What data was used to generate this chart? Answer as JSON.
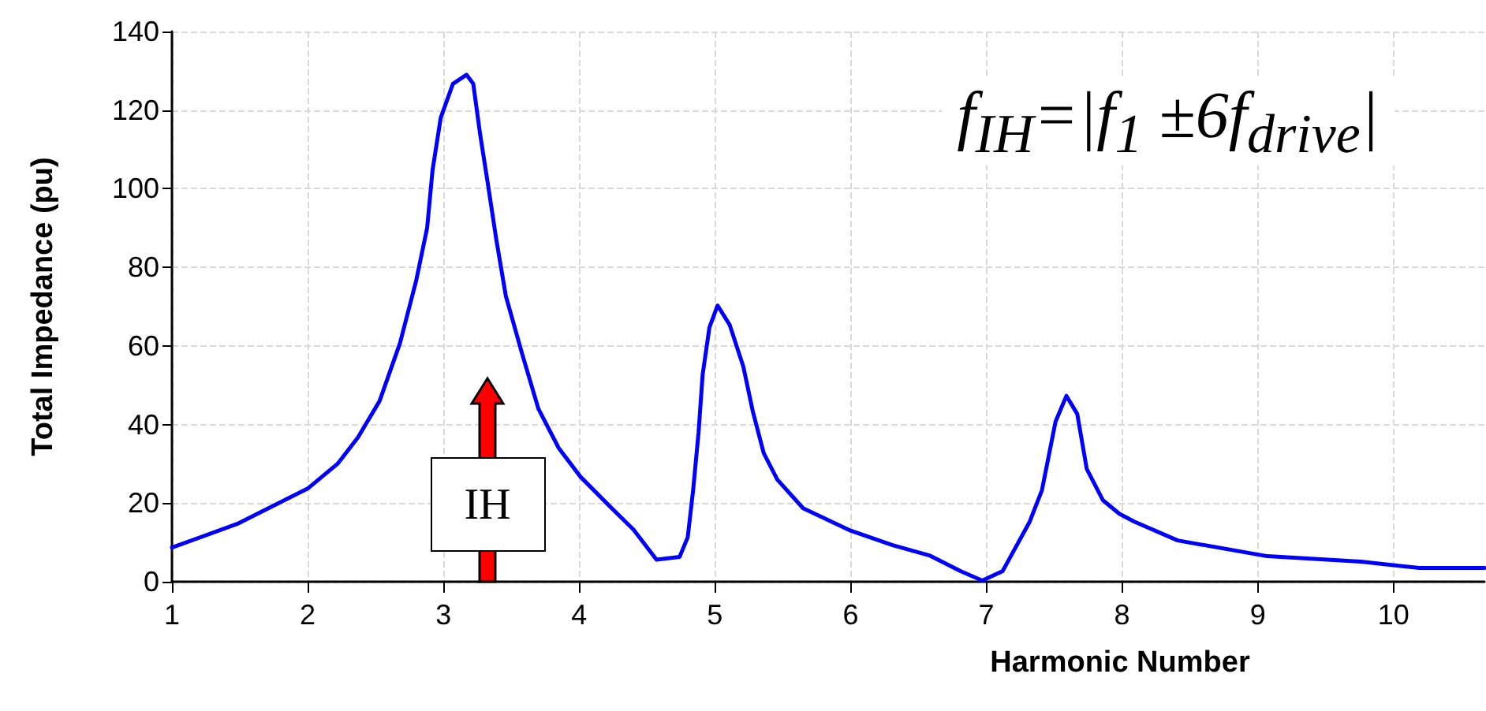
{
  "chart_data": {
    "type": "line",
    "xlabel": "Harmonic Number",
    "ylabel": "Total Impedance (pu)",
    "xlim": [
      1,
      10.67
    ],
    "xticks": [
      1,
      2,
      3,
      4,
      5,
      6,
      7,
      8,
      9,
      10
    ],
    "ylim": [
      0,
      140
    ],
    "yticks": [
      0,
      20,
      40,
      60,
      80,
      100,
      120,
      140
    ],
    "grid": true,
    "marker": "none",
    "line_style": "solid",
    "annotations": [
      "f$_{IH}$=|f$_{1}$ ±6f$_{drive}$|",
      "IH"
    ],
    "series": [
      {
        "color": "#0000ff",
        "x": [
          1.0,
          1.48,
          2.0,
          2.22,
          2.37,
          2.53,
          2.68,
          2.8,
          2.88,
          2.92,
          2.98,
          3.07,
          3.17,
          3.22,
          3.27,
          3.33,
          3.39,
          3.46,
          3.58,
          3.7,
          3.85,
          4.01,
          4.24,
          4.4,
          4.57,
          4.74,
          4.8,
          4.84,
          4.88,
          4.91,
          4.96,
          5.02,
          5.11,
          5.21,
          5.28,
          5.36,
          5.46,
          5.65,
          6.0,
          6.31,
          6.58,
          6.81,
          6.97,
          7.12,
          7.32,
          7.41,
          7.51,
          7.59,
          7.67,
          7.74,
          7.86,
          7.98,
          8.09,
          8.41,
          9.07,
          9.76,
          10.19,
          10.53,
          10.67
        ],
        "values": [
          8.7,
          14.7,
          23.7,
          30,
          36.7,
          46,
          60.7,
          76.7,
          90,
          104.7,
          118,
          126.7,
          129,
          126.7,
          114,
          100.7,
          87,
          72.7,
          58,
          44,
          34,
          26.7,
          18.7,
          13.3,
          5.6,
          6.3,
          11.3,
          23.3,
          38,
          52.7,
          64.7,
          70.3,
          65.3,
          54.7,
          43.3,
          32.7,
          26,
          18.7,
          13,
          9.3,
          6.7,
          2.7,
          0.3,
          2.7,
          15.3,
          23.3,
          40.7,
          47.3,
          42.7,
          28.7,
          20.7,
          17.3,
          15.3,
          10.5,
          6.5,
          5.1,
          3.5,
          3.5,
          3.5
        ]
      }
    ]
  }
}
